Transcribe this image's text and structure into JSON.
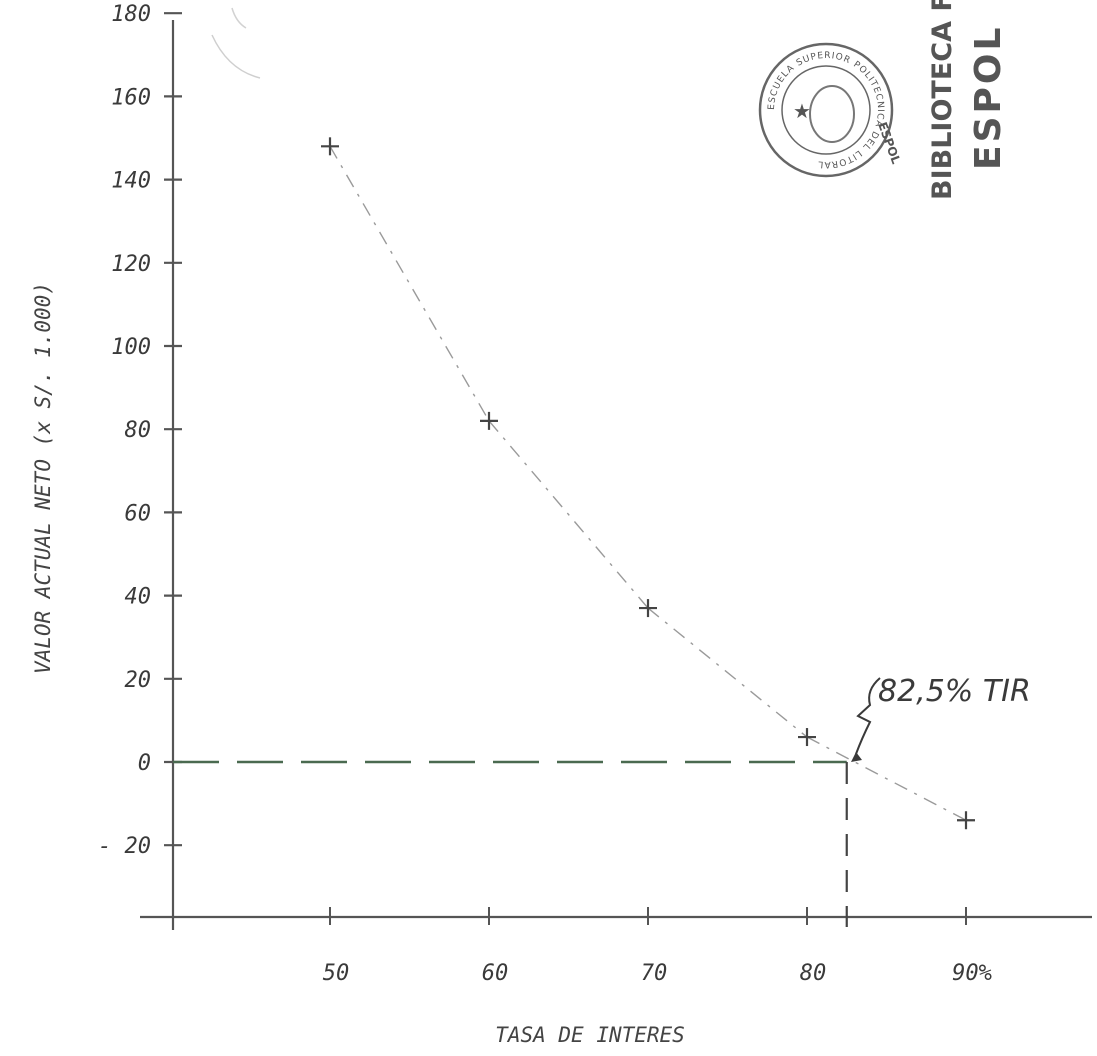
{
  "chart_data": {
    "type": "scatter",
    "title": "",
    "xlabel": "TASA DE INTERES",
    "ylabel": "VALOR ACTUAL NETO (x S/. 1.000)",
    "x_tick_labels": [
      "50",
      "60",
      "70",
      "80",
      "90%"
    ],
    "x_ticks": [
      50,
      60,
      70,
      80,
      90
    ],
    "y_tick_labels": [
      "180",
      "160",
      "140",
      "120",
      "100",
      "80",
      "60",
      "40",
      "20",
      "0",
      "- 20"
    ],
    "y_ticks": [
      180,
      160,
      140,
      120,
      100,
      80,
      60,
      40,
      20,
      0,
      -20
    ],
    "xlim": [
      40,
      98
    ],
    "ylim": [
      -40,
      180
    ],
    "points": [
      {
        "x": 50,
        "y": 148
      },
      {
        "x": 60,
        "y": 82
      },
      {
        "x": 70,
        "y": 37
      },
      {
        "x": 80,
        "y": 6
      },
      {
        "x": 90,
        "y": -14
      }
    ],
    "annotation": {
      "text": "82,5% TIR",
      "x": 82.5,
      "y": 0
    },
    "grid": false
  },
  "stamp": {
    "ring_text": "ESCUELA SUPERIOR POLITECNICA DEL LITORAL",
    "ring_short": "ESPOL",
    "library_line1": "BIBLIOTECA FICT",
    "library_line2": "ESPOL"
  },
  "colors": {
    "axis": "#555555",
    "ink": "#3a3a3a",
    "zero_dash": "#4a6a50",
    "stamp": "#666666"
  }
}
